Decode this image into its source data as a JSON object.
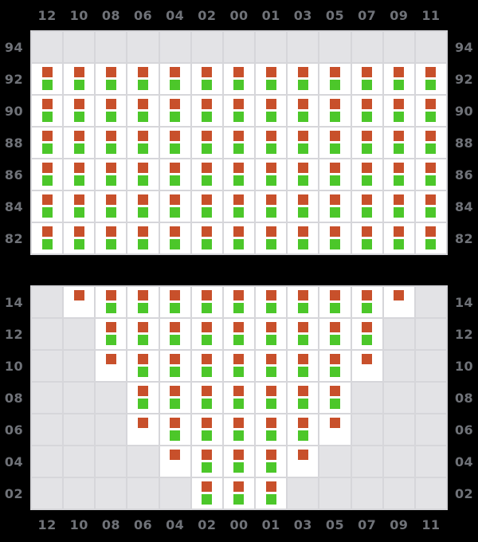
{
  "colors": {
    "background": "#000000",
    "axis_label": "#6f7278",
    "gridline": "#d6d6da",
    "cell_active": "#ffffff",
    "cell_empty": "#e3e3e6",
    "marker_orange": "#c8502b",
    "marker_green": "#4cc72a"
  },
  "chart_data": {
    "type": "heatmap",
    "layout": {
      "column_axis_positions": [
        "top",
        "bottom"
      ],
      "row_axis_positions": [
        "left",
        "right"
      ],
      "grid": "on",
      "panel_count": 2
    },
    "cell_state_legend": {
      "0": "empty",
      "1": "orange-marker-only",
      "2": "orange-and-green-markers"
    },
    "columns": [
      "12",
      "10",
      "08",
      "06",
      "04",
      "02",
      "00",
      "01",
      "03",
      "05",
      "07",
      "09",
      "11"
    ],
    "panels": [
      {
        "name": "upper",
        "row_labels": [
          "94",
          "92",
          "90",
          "88",
          "86",
          "84",
          "82"
        ],
        "cells": [
          [
            0,
            0,
            0,
            0,
            0,
            0,
            0,
            0,
            0,
            0,
            0,
            0,
            0
          ],
          [
            2,
            2,
            2,
            2,
            2,
            2,
            2,
            2,
            2,
            2,
            2,
            2,
            2
          ],
          [
            2,
            2,
            2,
            2,
            2,
            2,
            2,
            2,
            2,
            2,
            2,
            2,
            2
          ],
          [
            2,
            2,
            2,
            2,
            2,
            2,
            2,
            2,
            2,
            2,
            2,
            2,
            2
          ],
          [
            2,
            2,
            2,
            2,
            2,
            2,
            2,
            2,
            2,
            2,
            2,
            2,
            2
          ],
          [
            2,
            2,
            2,
            2,
            2,
            2,
            2,
            2,
            2,
            2,
            2,
            2,
            2
          ],
          [
            2,
            2,
            2,
            2,
            2,
            2,
            2,
            2,
            2,
            2,
            2,
            2,
            2
          ]
        ]
      },
      {
        "name": "lower",
        "row_labels": [
          "14",
          "12",
          "10",
          "08",
          "06",
          "04",
          "02"
        ],
        "cells": [
          [
            0,
            1,
            2,
            2,
            2,
            2,
            2,
            2,
            2,
            2,
            2,
            1,
            0
          ],
          [
            0,
            0,
            2,
            2,
            2,
            2,
            2,
            2,
            2,
            2,
            2,
            0,
            0
          ],
          [
            0,
            0,
            1,
            2,
            2,
            2,
            2,
            2,
            2,
            2,
            1,
            0,
            0
          ],
          [
            0,
            0,
            0,
            2,
            2,
            2,
            2,
            2,
            2,
            2,
            0,
            0,
            0
          ],
          [
            0,
            0,
            0,
            1,
            2,
            2,
            2,
            2,
            2,
            1,
            0,
            0,
            0
          ],
          [
            0,
            0,
            0,
            0,
            1,
            2,
            2,
            2,
            1,
            0,
            0,
            0,
            0
          ],
          [
            0,
            0,
            0,
            0,
            0,
            2,
            2,
            2,
            0,
            0,
            0,
            0,
            0
          ]
        ]
      }
    ]
  }
}
